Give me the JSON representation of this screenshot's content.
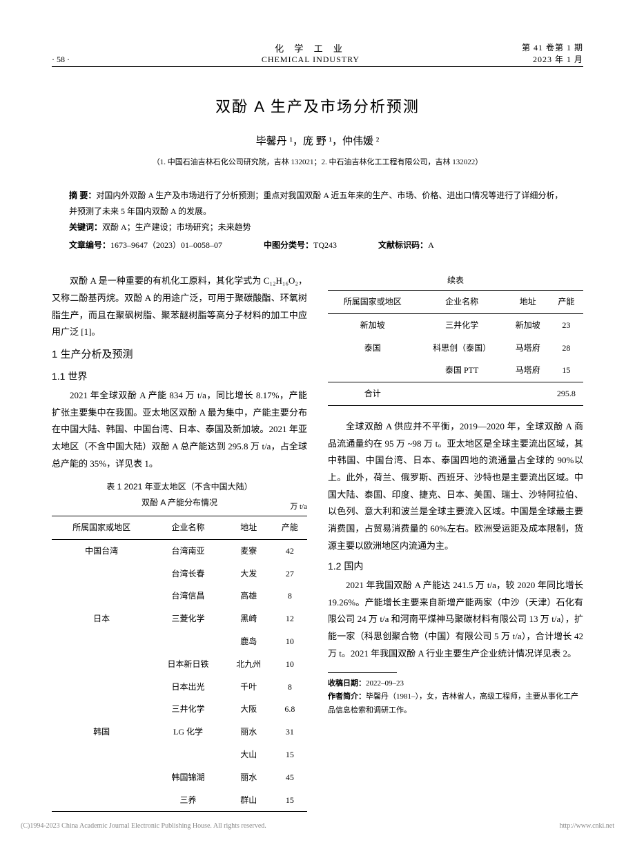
{
  "header": {
    "page_label": "· 58 ·",
    "journal_cn": "化 学 工 业",
    "journal_en": "CHEMICAL INDUSTRY",
    "volume_issue": "第 41 卷第 1 期",
    "date": "2023 年 1 月"
  },
  "title": "双酚 A 生产及市场分析预测",
  "authors": "毕馨丹 ¹，庞 野 ¹，仲伟媛 ²",
  "affiliation": "（1. 中国石油吉林石化公司研究院，吉林 132021；2. 中石油吉林化工工程有限公司，吉林 132022）",
  "abstract": {
    "label": "摘 要：",
    "text": "对国内外双酚 A 生产及市场进行了分析预测；重点对我国双酚 A 近五年来的生产、市场、价格、进出口情况等进行了详细分析，并预测了未来 5 年国内双酚 A 的发展。"
  },
  "keywords": {
    "label": "关键词：",
    "text": "双酚 A；生产建设；市场研究；未来趋势"
  },
  "article_no": {
    "label": "文章编号：",
    "text": "1673–9647（2023）01–0058–07"
  },
  "clc": {
    "label": "中图分类号：",
    "text": "TQ243"
  },
  "doc_code": {
    "label": "文献标识码：",
    "text": "A"
  },
  "intro_para": "双酚 A 是一种重要的有机化工原料，其化学式为 C₁₂H₁₆O₂，又称二酚基丙烷。双酚 A 的用途广泛，可用于聚碳酸酯、环氧树脂生产，而且在聚砜树脂、聚苯醚树脂等高分子材料的加工中应用广泛 [1]。",
  "section1": "1 生产分析及预测",
  "section1_1": "1.1 世界",
  "para_world": "2021 年全球双酚 A 产能 834 万 t/a，同比增长 8.17%，产能扩张主要集中在我国。亚太地区双酚 A 最为集中，产能主要分布在中国大陆、韩国、中国台湾、日本、泰国及新加坡。2021 年亚太地区（不含中国大陆）双酚 A 总产能达到 295.8 万 t/a，占全球总产能的 35%，详见表 1。",
  "table1": {
    "caption_line1": "表 1 2021 年亚太地区（不含中国大陆）",
    "caption_line2": "双酚 A 产能分布情况",
    "unit": "万 t/a",
    "columns": [
      "所属国家或地区",
      "企业名称",
      "地址",
      "产能"
    ],
    "rows": [
      [
        "中国台湾",
        "台湾南亚",
        "麦寮",
        "42"
      ],
      [
        "",
        "台湾长春",
        "大发",
        "27"
      ],
      [
        "",
        "台湾信昌",
        "高雄",
        "8"
      ],
      [
        "日本",
        "三菱化学",
        "黑崎",
        "12"
      ],
      [
        "",
        "",
        "鹿岛",
        "10"
      ],
      [
        "",
        "日本新日铁",
        "北九州",
        "10"
      ],
      [
        "",
        "日本出光",
        "千叶",
        "8"
      ],
      [
        "",
        "三井化学",
        "大阪",
        "6.8"
      ],
      [
        "韩国",
        "LG 化学",
        "丽水",
        "31"
      ],
      [
        "",
        "",
        "大山",
        "15"
      ],
      [
        "",
        "韩国锦湖",
        "丽水",
        "45"
      ],
      [
        "",
        "三养",
        "群山",
        "15"
      ]
    ]
  },
  "table1_cont": {
    "label": "续表",
    "columns": [
      "所属国家或地区",
      "企业名称",
      "地址",
      "产能"
    ],
    "rows": [
      [
        "新加坡",
        "三井化学",
        "新加坡",
        "23"
      ],
      [
        "泰国",
        "科思创（泰国）",
        "马塔府",
        "28"
      ],
      [
        "",
        "泰国 PTT",
        "马塔府",
        "15"
      ]
    ],
    "total_row": [
      "合计",
      "",
      "",
      "295.8"
    ]
  },
  "para_global_supply": "全球双酚 A 供应并不平衡，2019—2020 年，全球双酚 A 商品流通量约在 95 万 ~98 万 t。亚太地区是全球主要流出区域，其中韩国、中国台湾、日本、泰国四地的流通量占全球的 90%以上。此外，荷兰、俄罗斯、西班牙、沙特也是主要流出区域。中国大陆、泰国、印度、捷克、日本、美国、瑞士、沙特阿拉伯、以色列、意大利和波兰是全球主要流入区域。中国是全球最主要消费国，占贸易消费量的 60%左右。欧洲受运距及成本限制，货源主要以欧洲地区内流通为主。",
  "section1_2": "1.2 国内",
  "para_domestic": "2021 年我国双酚 A 产能达 241.5 万 t/a，较 2020 年同比增长 19.26%。产能增长主要来自新增产能两家（中沙（天津）石化有限公司 24 万 t/a 和河南平煤神马聚碳材料有限公司 13 万 t/a），扩能一家（科思创聚合物（中国）有限公司 5 万 t/a），合计增长 42 万 t。2021 年我国双酚 A 行业主要生产企业统计情况详见表 2。",
  "footnotes": {
    "received": {
      "label": "收稿日期：",
      "text": "2022–09–23"
    },
    "author_bio": {
      "label": "作者简介：",
      "text": "毕馨丹（1981–），女，吉林省人，高级工程师，主要从事化工产品信息检索和调研工作。"
    }
  },
  "footer": {
    "left": "(C)1994-2023 China Academic Journal Electronic Publishing House. All rights reserved.",
    "right": "http://www.cnki.net"
  },
  "colors": {
    "text": "#000000",
    "background": "#ffffff",
    "footer_text": "#888888",
    "rule": "#000000"
  },
  "fonts": {
    "body_family": "SimSun, STSong, serif",
    "heading_family": "SimHei, STHeiti, sans-serif",
    "body_size_pt": 10,
    "title_size_pt": 17,
    "caption_size_pt": 9
  }
}
